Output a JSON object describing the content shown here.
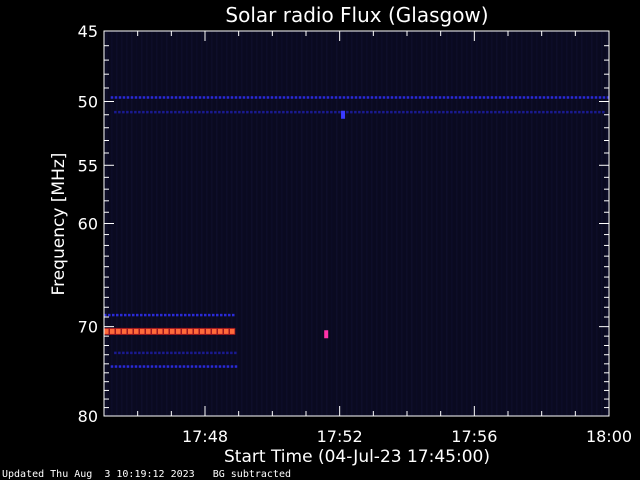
{
  "chart_data": {
    "type": "heatmap",
    "title": "Solar radio Flux (Glasgow)",
    "xlabel": "Start Time (04-Jul-23 17:45:00)",
    "ylabel": "Frequency [MHz]",
    "x_range_minutes": [
      0,
      15
    ],
    "y_range_mhz": [
      45,
      80
    ],
    "y_scale": "log",
    "x_ticks": [
      {
        "label": "17:48",
        "minute": 3
      },
      {
        "label": "17:52",
        "minute": 7
      },
      {
        "label": "17:56",
        "minute": 11
      },
      {
        "label": "18:00",
        "minute": 15
      }
    ],
    "y_ticks": [
      45,
      50,
      55,
      60,
      70,
      80
    ],
    "y_tick_labels": [
      "45",
      "50",
      "55",
      "60",
      "70",
      "80"
    ],
    "background_color": "#0a0a20",
    "emission_bands": [
      {
        "freq": 49.7,
        "t_start": 0.2,
        "t_end": 15,
        "intensity": "low",
        "color": "#2a2ad8"
      },
      {
        "freq": 50.8,
        "t_start": 0.3,
        "t_end": 14.8,
        "intensity": "low",
        "color": "#1a1a90"
      },
      {
        "freq": 68.8,
        "t_start": 0,
        "t_end": 3.9,
        "intensity": "low",
        "color": "#2a2ad8"
      },
      {
        "freq": 70.5,
        "t_start": 0,
        "t_end": 3.9,
        "intensity": "high",
        "color": "#ff6a3a"
      },
      {
        "freq": 72.8,
        "t_start": 0.3,
        "t_end": 3.9,
        "intensity": "low",
        "color": "#1a1a90"
      },
      {
        "freq": 74.3,
        "t_start": 0.2,
        "t_end": 3.9,
        "intensity": "low",
        "color": "#2a2ad8"
      }
    ],
    "spots": [
      {
        "freq": 70.8,
        "minute": 6.6,
        "color": "#ff33aa"
      },
      {
        "freq": 51.0,
        "minute": 7.1,
        "color": "#3a3aff"
      }
    ]
  },
  "footer": {
    "updated": "Updated Thu Aug  3 10:19:12 2023",
    "note": "BG subtracted"
  }
}
